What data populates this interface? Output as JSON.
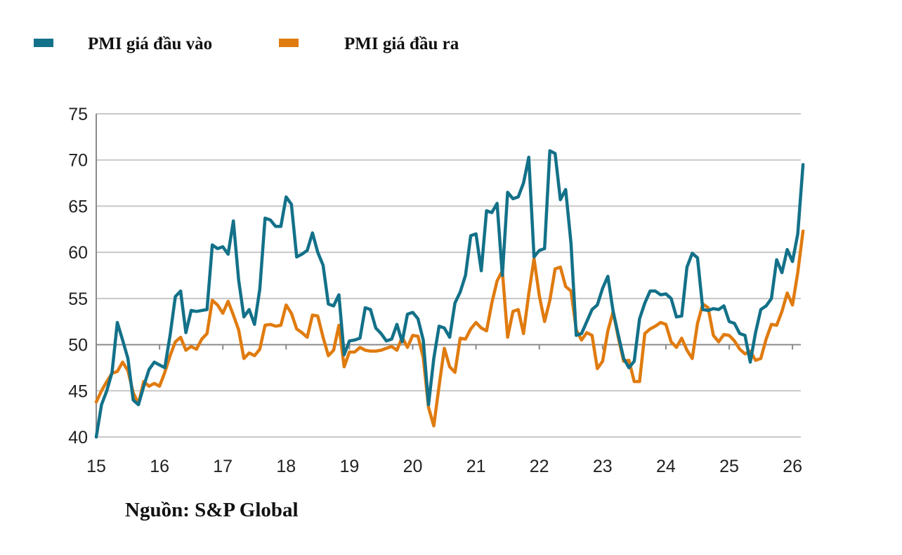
{
  "chart_data": {
    "type": "line",
    "title": "",
    "xlabel": "",
    "ylabel": "",
    "x_start": "2015-01",
    "x_frequency": "monthly",
    "xlim": [
      15,
      26.2
    ],
    "ylim": [
      40,
      75
    ],
    "x_ticks": [
      "15",
      "16",
      "17",
      "18",
      "19",
      "20",
      "21",
      "22",
      "23",
      "24",
      "25",
      "26"
    ],
    "y_ticks": [
      "40",
      "45",
      "50",
      "55",
      "60",
      "65",
      "70",
      "75"
    ],
    "grid": true,
    "legend_placement": "top-left",
    "series": [
      {
        "name": "PMI giá đầu vào",
        "color": "#137189",
        "values": [
          40,
          43.5,
          45,
          47,
          52.4,
          50.5,
          48.5,
          44,
          43.5,
          45.5,
          47.3,
          48.1,
          47.8,
          47.5,
          51,
          55.2,
          55.8,
          51.3,
          53.7,
          53.6,
          53.7,
          53.8,
          60.8,
          60.4,
          60.6,
          59.8,
          63.4,
          57,
          53,
          53.8,
          52.2,
          56,
          63.7,
          63.5,
          62.8,
          62.8,
          66,
          65.2,
          59.5,
          59.8,
          60.2,
          62.1,
          60,
          58.6,
          54.4,
          54.2,
          55.4,
          48.9,
          50.4,
          50.5,
          50.7,
          54,
          53.8,
          51.8,
          51.2,
          50.4,
          50.6,
          52.2,
          50.3,
          53.3,
          53.5,
          52.8,
          50.5,
          43.5,
          48.5,
          52,
          51.8,
          50.8,
          54.5,
          55.7,
          57.5,
          61.8,
          62,
          58,
          64.5,
          64.3,
          65.3,
          57.5,
          66.5,
          65.8,
          66,
          67.5,
          70.3,
          59.5,
          60.2,
          60.4,
          71,
          70.7,
          65.7,
          66.8,
          61,
          51,
          51.2,
          52.5,
          53.8,
          54.3,
          56.1,
          57.4,
          53.6,
          51,
          48.5,
          47.5,
          48.2,
          52.8,
          54.5,
          55.8,
          55.8,
          55.4,
          55.5,
          55,
          53,
          53.1,
          58.4,
          59.9,
          59.4,
          53.8,
          53.7,
          53.9,
          53.8,
          54.2,
          52.5,
          52.3,
          51.2,
          51,
          48.1,
          51.3,
          53.8,
          54.2,
          55,
          59.2,
          57.8,
          60.3,
          59,
          62,
          69.5
        ]
      },
      {
        "name": "PMI giá đầu ra",
        "color": "#E07B0F",
        "values": [
          43.8,
          45,
          46,
          46.9,
          47.1,
          48.1,
          47.2,
          44.8,
          43.6,
          46,
          45.5,
          45.8,
          45.5,
          47,
          48.8,
          50.3,
          50.8,
          49.4,
          49.8,
          49.5,
          50.6,
          51.2,
          54.8,
          54.3,
          53.4,
          54.7,
          53.2,
          51.6,
          48.5,
          49.1,
          48.8,
          49.5,
          52.1,
          52.2,
          52,
          52.1,
          54.3,
          53.4,
          51.7,
          51.3,
          50.8,
          53.2,
          53.1,
          50.8,
          48.8,
          49.4,
          52.1,
          47.6,
          49.2,
          49.2,
          49.7,
          49.4,
          49.3,
          49.3,
          49.4,
          49.6,
          49.8,
          49.4,
          50.8,
          49.7,
          51,
          50.9,
          48.6,
          43.2,
          41.2,
          45.5,
          49.6,
          47.6,
          47,
          50.7,
          50.6,
          51.7,
          52.4,
          51.8,
          51.5,
          54.5,
          56.9,
          58,
          50.8,
          53.6,
          53.8,
          51.2,
          55.5,
          59.3,
          55.3,
          52.5,
          54.8,
          58.2,
          58.4,
          56.3,
          55.8,
          51.6,
          50.5,
          51.3,
          51,
          47.4,
          48.2,
          51.5,
          53.6,
          50.7,
          48.2,
          48.3,
          46,
          46,
          51.2,
          51.7,
          52,
          52.4,
          52.2,
          50.3,
          49.7,
          50.7,
          49.4,
          48.5,
          52.3,
          54.4,
          54,
          51,
          50.3,
          51.1,
          51,
          50.4,
          49.5,
          49,
          49.3,
          48.3,
          48.5,
          50.6,
          52.2,
          52.1,
          53.6,
          55.6,
          54.3,
          57.8,
          62.3
        ]
      }
    ]
  },
  "source": "Nguồn: S&P Global"
}
